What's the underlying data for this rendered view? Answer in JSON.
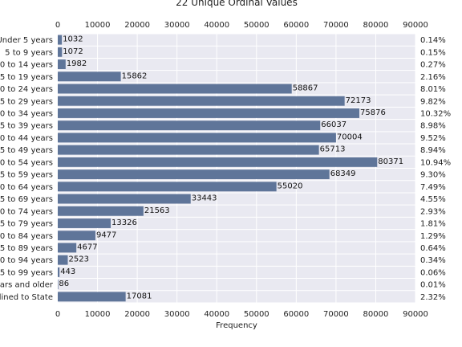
{
  "chart_data": {
    "type": "bar",
    "orientation": "horizontal",
    "title": "22 Unique Ordinal Values",
    "xlabel": "Frequency",
    "ylabel": "",
    "xlim": [
      0,
      90000
    ],
    "x_ticks": [
      0,
      10000,
      20000,
      30000,
      40000,
      50000,
      60000,
      70000,
      80000,
      90000
    ],
    "x_tick_labels": [
      "0",
      "10000",
      "20000",
      "30000",
      "40000",
      "50000",
      "60000",
      "70000",
      "80000",
      "90000"
    ],
    "x_axis_position": "top-and-bottom",
    "grid": true,
    "bar_color": "#5f7599",
    "background_color": "#e9e9f1",
    "grid_color": "#ffffff",
    "categories": [
      "Under 5 years",
      "5 to 9 years",
      "0 to 14 years",
      "5 to 19 years",
      "0 to 24 years",
      "5 to 29 years",
      "0 to 34 years",
      "5 to 39 years",
      "0 to 44 years",
      "5 to 49 years",
      "0 to 54 years",
      "5 to 59 years",
      "0 to 64 years",
      "5 to 69 years",
      "0 to 74 years",
      "5 to 79 years",
      "0 to 84 years",
      "5 to 89 years",
      "0 to 94 years",
      "5 to 99 years",
      "ars and older",
      "lined to State"
    ],
    "values": [
      1032,
      1072,
      1982,
      15862,
      58867,
      72173,
      75876,
      66037,
      70004,
      65713,
      80371,
      68349,
      55020,
      33443,
      21563,
      13326,
      9477,
      4677,
      2523,
      443,
      86,
      17081
    ],
    "value_labels": [
      "1032",
      "1072",
      "1982",
      "15862",
      "58867",
      "72173",
      "75876",
      "66037",
      "70004",
      "65713",
      "80371",
      "68349",
      "55020",
      "33443",
      "21563",
      "13326",
      "9477",
      "4677",
      "2523",
      "443",
      "86",
      "17081"
    ],
    "percentages": [
      "0.14%",
      "0.15%",
      "0.27%",
      "2.16%",
      "8.01%",
      "9.82%",
      "10.32%",
      "8.98%",
      "9.52%",
      "8.94%",
      "10.94%",
      "9.30%",
      "7.49%",
      "4.55%",
      "2.93%",
      "1.81%",
      "1.29%",
      "0.64%",
      "0.34%",
      "0.06%",
      "0.01%",
      "2.32%"
    ]
  }
}
